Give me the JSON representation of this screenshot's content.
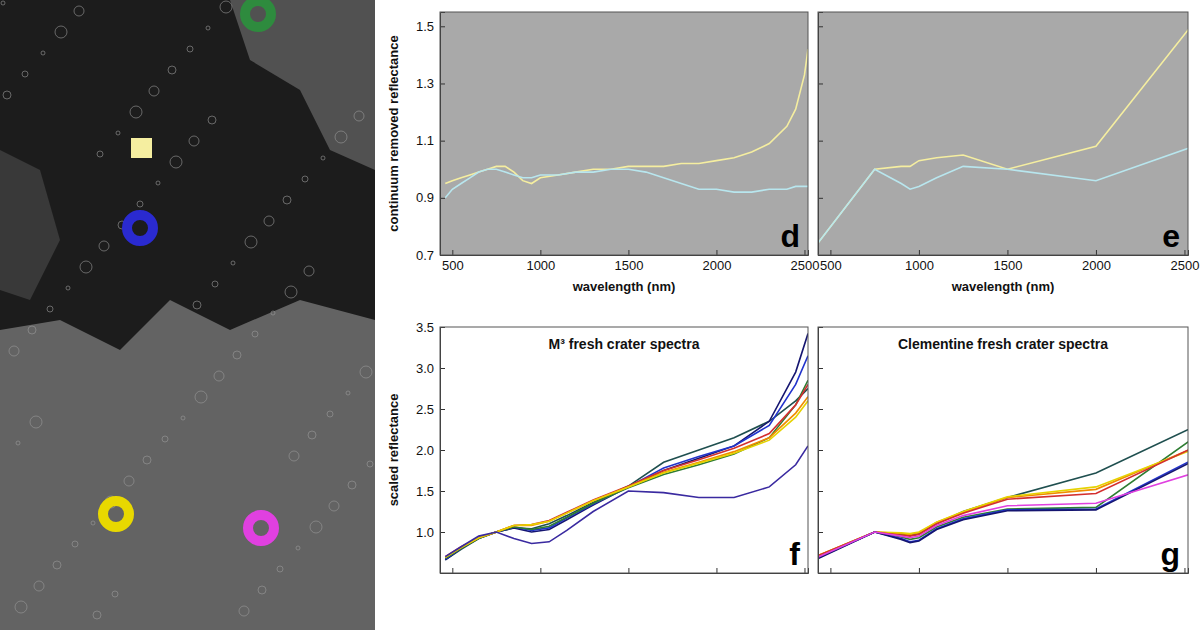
{
  "chart_data": [
    {
      "type": "line",
      "panel_label": "d",
      "x_label": "wavelength (nm)",
      "y_label": "continuum removed reflectance",
      "x": [
        460,
        500,
        550,
        600,
        650,
        700,
        750,
        800,
        850,
        900,
        950,
        1000,
        1100,
        1200,
        1300,
        1400,
        1500,
        1600,
        1700,
        1800,
        1900,
        2000,
        2100,
        2200,
        2300,
        2400,
        2450,
        2500,
        2520
      ],
      "series": [
        {
          "color": "#f5eea0",
          "values": [
            0.95,
            0.96,
            0.97,
            0.98,
            0.99,
            1.0,
            1.01,
            1.01,
            0.99,
            0.96,
            0.95,
            0.97,
            0.98,
            0.99,
            1.0,
            1.0,
            1.01,
            1.01,
            1.01,
            1.02,
            1.02,
            1.03,
            1.04,
            1.06,
            1.09,
            1.15,
            1.21,
            1.33,
            1.42
          ]
        },
        {
          "color": "#b8e6ee",
          "values": [
            0.9,
            0.93,
            0.95,
            0.97,
            0.99,
            1.0,
            1.0,
            0.99,
            0.98,
            0.97,
            0.97,
            0.98,
            0.98,
            0.99,
            0.99,
            1.0,
            1.0,
            0.99,
            0.97,
            0.95,
            0.93,
            0.93,
            0.92,
            0.92,
            0.93,
            0.93,
            0.94,
            0.94,
            0.94
          ]
        }
      ],
      "xlim": [
        430,
        2520
      ],
      "xticks": [
        500,
        1000,
        1500,
        2000,
        2500
      ],
      "ylim": [
        0.7,
        1.55
      ],
      "yticks": [
        0.7,
        0.9,
        1.1,
        1.3,
        1.5
      ]
    },
    {
      "type": "line",
      "panel_label": "e",
      "x_label": "wavelength (nm)",
      "tick_labels": "x",
      "x": [
        415,
        750,
        900,
        950,
        1000,
        1100,
        1250,
        1500,
        2000,
        2600
      ],
      "series": [
        {
          "color": "#f5eea0",
          "values": [
            0.73,
            1.0,
            1.01,
            1.01,
            1.03,
            1.04,
            1.05,
            1.0,
            1.08,
            1.55
          ]
        },
        {
          "color": "#b8e6ee",
          "values": [
            0.73,
            1.0,
            0.95,
            0.93,
            0.94,
            0.97,
            1.01,
            1.0,
            0.96,
            1.09
          ]
        }
      ],
      "xlim": [
        430,
        2520
      ],
      "xticks": [
        500,
        1000,
        1500,
        2000,
        2500
      ],
      "ylim": [
        0.7,
        1.55
      ],
      "yticks": [
        0.7,
        0.9,
        1.1,
        1.3,
        1.5
      ]
    },
    {
      "type": "line",
      "panel_label": "f",
      "title": "M³ fresh crater spectra",
      "y_label": "scaled reflectance",
      "tick_labels": "y",
      "x": [
        460,
        550,
        650,
        750,
        850,
        950,
        1050,
        1150,
        1300,
        1500,
        1700,
        1900,
        2100,
        2300,
        2450,
        2520
      ],
      "series": [
        {
          "color": "#1f4f4f",
          "values": [
            0.66,
            0.79,
            0.92,
            1.0,
            1.05,
            1.04,
            1.1,
            1.2,
            1.36,
            1.56,
            1.85,
            2.0,
            2.15,
            2.35,
            2.6,
            2.75
          ]
        },
        {
          "color": "#151570",
          "values": [
            0.66,
            0.8,
            0.93,
            1.0,
            1.05,
            1.0,
            1.03,
            1.15,
            1.33,
            1.55,
            1.75,
            1.9,
            2.05,
            2.35,
            2.95,
            3.42
          ]
        },
        {
          "color": "#2233cc",
          "values": [
            0.67,
            0.8,
            0.93,
            1.0,
            1.06,
            1.02,
            1.05,
            1.17,
            1.34,
            1.55,
            1.78,
            1.92,
            2.05,
            2.3,
            2.8,
            3.15
          ]
        },
        {
          "color": "#2e7d32",
          "values": [
            0.68,
            0.8,
            0.92,
            1.0,
            1.06,
            1.03,
            1.07,
            1.18,
            1.35,
            1.54,
            1.7,
            1.82,
            1.95,
            2.15,
            2.55,
            2.85
          ]
        },
        {
          "color": "#d32f2f",
          "values": [
            0.7,
            0.82,
            0.93,
            1.0,
            1.08,
            1.09,
            1.14,
            1.24,
            1.39,
            1.56,
            1.75,
            1.88,
            2.02,
            2.2,
            2.55,
            2.8
          ]
        },
        {
          "color": "#f08c00",
          "values": [
            0.69,
            0.81,
            0.93,
            1.0,
            1.08,
            1.08,
            1.13,
            1.23,
            1.38,
            1.55,
            1.73,
            1.85,
            1.98,
            2.15,
            2.45,
            2.65
          ]
        },
        {
          "color": "#e6d200",
          "values": [
            0.69,
            0.81,
            0.93,
            1.0,
            1.08,
            1.09,
            1.13,
            1.23,
            1.38,
            1.55,
            1.72,
            1.84,
            1.96,
            2.12,
            2.4,
            2.6
          ]
        },
        {
          "color": "#3a2aa0",
          "values": [
            0.7,
            0.82,
            0.95,
            1.0,
            0.92,
            0.86,
            0.88,
            1.02,
            1.25,
            1.5,
            1.48,
            1.42,
            1.42,
            1.55,
            1.82,
            2.05
          ]
        }
      ],
      "xlim": [
        430,
        2520
      ],
      "xticks": [
        500,
        1000,
        1500,
        2000,
        2500
      ],
      "ylim": [
        0.5,
        3.5
      ],
      "yticks": [
        {
          "value": 1.0,
          "label": "1.0"
        },
        1.5,
        {
          "value": 2.0,
          "label": "2.0"
        },
        2.5,
        {
          "value": 3.0,
          "label": "3.0"
        },
        3.5
      ]
    },
    {
      "type": "line",
      "panel_label": "g",
      "title": "Clementine fresh crater spectra",
      "tick_labels": false,
      "x": [
        415,
        750,
        900,
        950,
        1000,
        1100,
        1250,
        1500,
        2000,
        2600
      ],
      "series": [
        {
          "color": "#1f4f4f",
          "values": [
            0.68,
            1.0,
            0.97,
            0.96,
            0.98,
            1.1,
            1.25,
            1.42,
            1.72,
            2.33
          ]
        },
        {
          "color": "#2e7d32",
          "values": [
            0.68,
            1.0,
            0.94,
            0.91,
            0.93,
            1.06,
            1.18,
            1.28,
            1.3,
            2.22
          ]
        },
        {
          "color": "#f08c00",
          "values": [
            0.7,
            1.0,
            0.98,
            0.97,
            0.99,
            1.12,
            1.24,
            1.42,
            1.52,
            2.07
          ]
        },
        {
          "color": "#e6d200",
          "values": [
            0.7,
            1.0,
            0.99,
            0.98,
            1.0,
            1.12,
            1.25,
            1.43,
            1.55,
            2.05
          ]
        },
        {
          "color": "#d32f2f",
          "values": [
            0.7,
            1.0,
            0.96,
            0.95,
            0.97,
            1.1,
            1.23,
            1.4,
            1.47,
            2.08
          ]
        },
        {
          "color": "#2233cc",
          "values": [
            0.67,
            1.0,
            0.92,
            0.88,
            0.9,
            1.04,
            1.16,
            1.27,
            1.28,
            1.94
          ]
        },
        {
          "color": "#151570",
          "values": [
            0.66,
            1.0,
            0.91,
            0.87,
            0.89,
            1.03,
            1.15,
            1.26,
            1.27,
            1.92
          ]
        },
        {
          "color": "#e040e0",
          "values": [
            0.68,
            1.0,
            0.95,
            0.93,
            0.95,
            1.08,
            1.2,
            1.32,
            1.35,
            1.75
          ]
        }
      ],
      "xlim": [
        430,
        2520
      ],
      "xticks": [
        500,
        1000,
        1500,
        2000,
        2500
      ],
      "ylim": [
        0.5,
        3.5
      ],
      "yticks": [
        {
          "value": 1.0,
          "label": "1.0"
        },
        1.5,
        {
          "value": 2.0,
          "label": "2.0"
        },
        2.5,
        {
          "value": 3.0,
          "label": "3.0"
        },
        3.5
      ]
    }
  ]
}
